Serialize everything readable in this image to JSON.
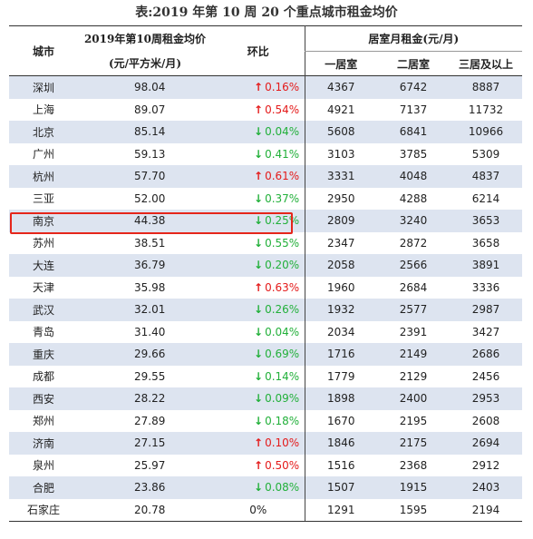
{
  "caption": "表:2019 年第 10 周 20 个重点城市租金均价",
  "headers": {
    "city": "城市",
    "price_line1": "2019年第10周租金均价",
    "price_line2": "(元/平方米/月)",
    "change": "环比",
    "rent_group": "居室月租金(元/月)",
    "rent_1": "一居室",
    "rent_2": "二居室",
    "rent_3": "三居及以上"
  },
  "colors": {
    "up": "#e41a1a",
    "down": "#22b03a",
    "highlight": "#e5261b",
    "row_shade": "#dde4f0"
  },
  "icons": {
    "up": "arrow-up-icon",
    "down": "arrow-down-icon"
  },
  "rows": [
    {
      "city": "深圳",
      "price": "98.04",
      "dir": "up",
      "arrow": "↑",
      "change": "0.16%",
      "r1": "4367",
      "r2": "6742",
      "r3": "8887"
    },
    {
      "city": "上海",
      "price": "89.07",
      "dir": "up",
      "arrow": "↑",
      "change": "0.54%",
      "r1": "4921",
      "r2": "7137",
      "r3": "11732"
    },
    {
      "city": "北京",
      "price": "85.14",
      "dir": "down",
      "arrow": "↓",
      "change": "0.04%",
      "r1": "5608",
      "r2": "6841",
      "r3": "10966"
    },
    {
      "city": "广州",
      "price": "59.13",
      "dir": "down",
      "arrow": "↓",
      "change": "0.41%",
      "r1": "3103",
      "r2": "3785",
      "r3": "5309"
    },
    {
      "city": "杭州",
      "price": "57.70",
      "dir": "up",
      "arrow": "↑",
      "change": "0.61%",
      "r1": "3331",
      "r2": "4048",
      "r3": "4837"
    },
    {
      "city": "三亚",
      "price": "52.00",
      "dir": "down",
      "arrow": "↓",
      "change": "0.37%",
      "r1": "2950",
      "r2": "4288",
      "r3": "6214"
    },
    {
      "city": "南京",
      "price": "44.38",
      "dir": "down",
      "arrow": "↓",
      "change": "0.25%",
      "r1": "2809",
      "r2": "3240",
      "r3": "3653"
    },
    {
      "city": "苏州",
      "price": "38.51",
      "dir": "down",
      "arrow": "↓",
      "change": "0.55%",
      "r1": "2347",
      "r2": "2872",
      "r3": "3658"
    },
    {
      "city": "大连",
      "price": "36.79",
      "dir": "down",
      "arrow": "↓",
      "change": "0.20%",
      "r1": "2058",
      "r2": "2566",
      "r3": "3891"
    },
    {
      "city": "天津",
      "price": "35.98",
      "dir": "up",
      "arrow": "↑",
      "change": "0.63%",
      "r1": "1960",
      "r2": "2684",
      "r3": "3336"
    },
    {
      "city": "武汉",
      "price": "32.01",
      "dir": "down",
      "arrow": "↓",
      "change": "0.26%",
      "r1": "1932",
      "r2": "2577",
      "r3": "2987"
    },
    {
      "city": "青岛",
      "price": "31.40",
      "dir": "down",
      "arrow": "↓",
      "change": "0.04%",
      "r1": "2034",
      "r2": "2391",
      "r3": "3427"
    },
    {
      "city": "重庆",
      "price": "29.66",
      "dir": "down",
      "arrow": "↓",
      "change": "0.69%",
      "r1": "1716",
      "r2": "2149",
      "r3": "2686"
    },
    {
      "city": "成都",
      "price": "29.55",
      "dir": "down",
      "arrow": "↓",
      "change": "0.14%",
      "r1": "1779",
      "r2": "2129",
      "r3": "2456"
    },
    {
      "city": "西安",
      "price": "28.22",
      "dir": "down",
      "arrow": "↓",
      "change": "0.09%",
      "r1": "1898",
      "r2": "2400",
      "r3": "2953"
    },
    {
      "city": "郑州",
      "price": "27.89",
      "dir": "down",
      "arrow": "↓",
      "change": "0.18%",
      "r1": "1670",
      "r2": "2195",
      "r3": "2608"
    },
    {
      "city": "济南",
      "price": "27.15",
      "dir": "up",
      "arrow": "↑",
      "change": "0.10%",
      "r1": "1846",
      "r2": "2175",
      "r3": "2694"
    },
    {
      "city": "泉州",
      "price": "25.97",
      "dir": "up",
      "arrow": "↑",
      "change": "0.50%",
      "r1": "1516",
      "r2": "2368",
      "r3": "2912"
    },
    {
      "city": "合肥",
      "price": "23.86",
      "dir": "down",
      "arrow": "↓",
      "change": "0.08%",
      "r1": "1507",
      "r2": "1915",
      "r3": "2403"
    },
    {
      "city": "石家庄",
      "price": "20.78",
      "dir": "flat",
      "arrow": "",
      "change": "0%",
      "r1": "1291",
      "r2": "1595",
      "r3": "2194"
    }
  ],
  "highlighted_city": "南京"
}
